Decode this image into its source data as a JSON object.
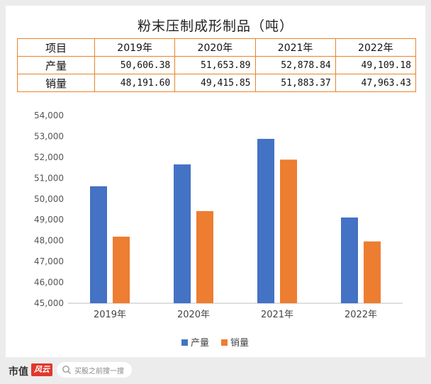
{
  "chart_data": {
    "type": "bar",
    "title": "粉末压制成形制品（吨）",
    "categories": [
      "2019年",
      "2020年",
      "2021年",
      "2022年"
    ],
    "series": [
      {
        "name": "产量",
        "values": [
          50606.38,
          51653.89,
          52878.84,
          49109.18
        ],
        "color": "#4472c4"
      },
      {
        "name": "销量",
        "values": [
          48191.6,
          49415.85,
          51883.37,
          47963.43
        ],
        "color": "#ed7d31"
      }
    ],
    "ylim": [
      45000,
      54000
    ],
    "yticks": [
      "45,000",
      "46,000",
      "47,000",
      "48,000",
      "49,000",
      "50,000",
      "51,000",
      "52,000",
      "53,000",
      "54,000"
    ],
    "xlabel": "",
    "ylabel": "",
    "legend_position": "bottom",
    "grid": false
  },
  "table": {
    "header_label": "项目",
    "columns": [
      "2019年",
      "2020年",
      "2021年",
      "2022年"
    ],
    "rows": [
      {
        "label": "产量",
        "cells": [
          "50,606.38",
          "51,653.89",
          "52,878.84",
          "49,109.18"
        ]
      },
      {
        "label": "销量",
        "cells": [
          "48,191.60",
          "49,415.85",
          "51,883.37",
          "47,963.43"
        ]
      }
    ]
  },
  "footer": {
    "brand": "市值",
    "brand_mark": "风云",
    "search_placeholder": "买股之前搜一搜"
  }
}
